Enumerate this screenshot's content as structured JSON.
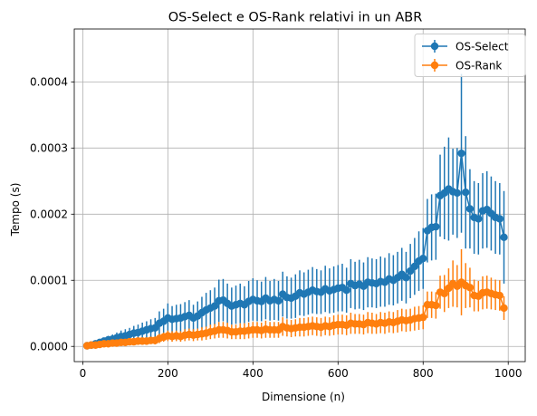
{
  "chart_data": {
    "type": "line",
    "title": "OS-Select e OS-Rank relativi in un ABR",
    "xlabel": "Dimensione (n)",
    "ylabel": "Tempo (s)",
    "xlim": [
      -20,
      1040
    ],
    "ylim": [
      -2.3e-05,
      0.00048
    ],
    "xticks": [
      0,
      200,
      400,
      600,
      800,
      1000
    ],
    "xtick_labels": [
      "0",
      "200",
      "400",
      "600",
      "800",
      "1000"
    ],
    "yticks": [
      0,
      0.0001,
      0.0002,
      0.0003,
      0.0004
    ],
    "ytick_labels": [
      "0.0000",
      "0.0001",
      "0.0002",
      "0.0003",
      "0.0004"
    ],
    "grid": true,
    "legend_position": "top-right",
    "error_bars": true,
    "x": [
      10,
      20,
      30,
      40,
      50,
      60,
      70,
      80,
      90,
      100,
      110,
      120,
      130,
      140,
      150,
      160,
      170,
      180,
      190,
      200,
      210,
      220,
      230,
      240,
      250,
      260,
      270,
      280,
      290,
      300,
      310,
      320,
      330,
      340,
      350,
      360,
      370,
      380,
      390,
      400,
      410,
      420,
      430,
      440,
      450,
      460,
      470,
      480,
      490,
      500,
      510,
      520,
      530,
      540,
      550,
      560,
      570,
      580,
      590,
      600,
      610,
      620,
      630,
      640,
      650,
      660,
      670,
      680,
      690,
      700,
      710,
      720,
      730,
      740,
      750,
      760,
      770,
      780,
      790,
      800,
      810,
      820,
      830,
      840,
      850,
      860,
      870,
      880,
      890,
      900,
      910,
      920,
      930,
      940,
      950,
      960,
      970,
      980,
      990
    ],
    "series": [
      {
        "name": "OS-Select",
        "color": "#1f77b4",
        "values": [
          1e-06,
          2e-06,
          4e-06,
          6e-06,
          8e-06,
          1e-05,
          1.1e-05,
          1.3e-05,
          1.5e-05,
          1.6e-05,
          1.8e-05,
          2e-05,
          2.1e-05,
          2.3e-05,
          2.5e-05,
          2.7e-05,
          2.8e-05,
          3.5e-05,
          3.8e-05,
          4.3e-05,
          4.1e-05,
          4.2e-05,
          4.3e-05,
          4.5e-05,
          4.7e-05,
          4.3e-05,
          4.6e-05,
          5.1e-05,
          5.5e-05,
          5.8e-05,
          6.1e-05,
          6.9e-05,
          7e-05,
          6.5e-05,
          6.1e-05,
          6.3e-05,
          6.5e-05,
          6.3e-05,
          6.8e-05,
          7.1e-05,
          6.9e-05,
          6.8e-05,
          7.3e-05,
          6.9e-05,
          7.1e-05,
          6.9e-05,
          7.9e-05,
          7.4e-05,
          7.3e-05,
          7.6e-05,
          8.1e-05,
          7.9e-05,
          8.2e-05,
          8.5e-05,
          8.3e-05,
          8.2e-05,
          8.7e-05,
          8.4e-05,
          8.6e-05,
          8.8e-05,
          8.9e-05,
          8.5e-05,
          9.5e-05,
          9.2e-05,
          9.4e-05,
          9.1e-05,
          9.7e-05,
          9.6e-05,
          9.5e-05,
          9.8e-05,
          9.7e-05,
          0.000102,
          0.0001,
          0.000104,
          0.000109,
          0.000104,
          0.000114,
          0.000121,
          0.000129,
          0.000133,
          0.000175,
          0.00018,
          0.000181,
          0.000228,
          0.000232,
          0.000238,
          0.000234,
          0.000232,
          0.000292,
          0.000233,
          0.000208,
          0.000195,
          0.000193,
          0.000205,
          0.000207,
          0.000201,
          0.000195,
          0.000193,
          0.000165
        ],
        "errors": [
          1e-06,
          2e-06,
          3e-06,
          4e-06,
          5e-06,
          6e-06,
          7e-06,
          8e-06,
          9e-06,
          1e-05,
          1e-05,
          1.1e-05,
          1.2e-05,
          1.3e-05,
          1.3e-05,
          1.4e-05,
          1.5e-05,
          1.8e-05,
          1.9e-05,
          2.2e-05,
          2e-05,
          2.1e-05,
          2.1e-05,
          2.2e-05,
          2.3e-05,
          2e-05,
          2.2e-05,
          2.4e-05,
          2.6e-05,
          2.7e-05,
          2.8e-05,
          3.2e-05,
          3.2e-05,
          3e-05,
          2.8e-05,
          2.9e-05,
          3e-05,
          2.8e-05,
          3.1e-05,
          3.2e-05,
          3.1e-05,
          3e-05,
          3.2e-05,
          3e-05,
          3.1e-05,
          3e-05,
          3.4e-05,
          3.2e-05,
          3.1e-05,
          3.3e-05,
          3.4e-05,
          3.3e-05,
          3.4e-05,
          3.5e-05,
          3.4e-05,
          3.3e-05,
          3.5e-05,
          3.4e-05,
          3.5e-05,
          3.5e-05,
          3.6e-05,
          3.4e-05,
          3.7e-05,
          3.6e-05,
          3.7e-05,
          3.6e-05,
          3.8e-05,
          3.7e-05,
          3.7e-05,
          3.8e-05,
          3.7e-05,
          3.9e-05,
          3.8e-05,
          3.9e-05,
          4e-05,
          3.9e-05,
          4.1e-05,
          4.3e-05,
          4.5e-05,
          4.6e-05,
          4.8e-05,
          5e-05,
          5e-05,
          6.2e-05,
          7e-05,
          7.8e-05,
          6.5e-05,
          6.8e-05,
          0.00012,
          8.5e-05,
          6e-05,
          5.5e-05,
          5.4e-05,
          5.7e-05,
          5.8e-05,
          5.6e-05,
          5.5e-05,
          5.4e-05,
          7e-05
        ]
      },
      {
        "name": "OS-Rank",
        "color": "#ff7f0e",
        "values": [
          1e-06,
          2e-06,
          2e-06,
          3e-06,
          4e-06,
          4e-06,
          5e-06,
          5e-06,
          6e-06,
          6e-06,
          7e-06,
          7e-06,
          8e-06,
          8e-06,
          8e-06,
          9e-06,
          9e-06,
          1.2e-05,
          1.4e-05,
          1.6e-05,
          1.5e-05,
          1.6e-05,
          1.5e-05,
          1.7e-05,
          1.8e-05,
          1.7e-05,
          1.8e-05,
          1.9e-05,
          2e-05,
          2.2e-05,
          2.3e-05,
          2.5e-05,
          2.5e-05,
          2.4e-05,
          2.2e-05,
          2.2e-05,
          2.3e-05,
          2.3e-05,
          2.4e-05,
          2.5e-05,
          2.5e-05,
          2.4e-05,
          2.6e-05,
          2.5e-05,
          2.5e-05,
          2.5e-05,
          3e-05,
          2.8e-05,
          2.7e-05,
          2.8e-05,
          2.9e-05,
          2.9e-05,
          3e-05,
          3.1e-05,
          3e-05,
          2.9e-05,
          3.1e-05,
          3e-05,
          3.2e-05,
          3.3e-05,
          3.3e-05,
          3.2e-05,
          3.5e-05,
          3.4e-05,
          3.4e-05,
          3.3e-05,
          3.6e-05,
          3.5e-05,
          3.4e-05,
          3.6e-05,
          3.5e-05,
          3.7e-05,
          3.6e-05,
          3.8e-05,
          4e-05,
          3.9e-05,
          4e-05,
          4.2e-05,
          4.3e-05,
          4.4e-05,
          6.3e-05,
          6.3e-05,
          6.2e-05,
          8.2e-05,
          8e-05,
          8.8e-05,
          9.5e-05,
          9.1e-05,
          9.7e-05,
          9.2e-05,
          8.9e-05,
          7.7e-05,
          7.6e-05,
          8.1e-05,
          8.2e-05,
          8e-05,
          7.8e-05,
          7.7e-05,
          5.8e-05
        ],
        "errors": [
          1e-06,
          1e-06,
          2e-06,
          2e-06,
          2e-06,
          3e-06,
          3e-06,
          3e-06,
          4e-06,
          4e-06,
          4e-06,
          4e-06,
          5e-06,
          5e-06,
          5e-06,
          5e-06,
          6e-06,
          7e-06,
          7e-06,
          8e-06,
          8e-06,
          8e-06,
          8e-06,
          9e-06,
          9e-06,
          9e-06,
          9e-06,
          1e-05,
          1e-05,
          1.1e-05,
          1.1e-05,
          1.2e-05,
          1.2e-05,
          1.2e-05,
          1.1e-05,
          1.1e-05,
          1.2e-05,
          1.2e-05,
          1.2e-05,
          1.2e-05,
          1.2e-05,
          1.2e-05,
          1.3e-05,
          1.2e-05,
          1.2e-05,
          1.2e-05,
          1.4e-05,
          1.3e-05,
          1.3e-05,
          1.3e-05,
          1.4e-05,
          1.4e-05,
          1.4e-05,
          1.4e-05,
          1.4e-05,
          1.4e-05,
          1.4e-05,
          1.4e-05,
          1.5e-05,
          1.5e-05,
          1.5e-05,
          1.5e-05,
          1.6e-05,
          1.5e-05,
          1.5e-05,
          1.5e-05,
          1.6e-05,
          1.6e-05,
          1.5e-05,
          1.6e-05,
          1.6e-05,
          1.6e-05,
          1.6e-05,
          1.7e-05,
          1.7e-05,
          1.7e-05,
          1.7e-05,
          1.8e-05,
          1.8e-05,
          1.8e-05,
          2e-05,
          2e-05,
          2e-05,
          2.5e-05,
          2.8e-05,
          3e-05,
          3.5e-05,
          3.2e-05,
          5e-05,
          3.4e-05,
          3e-05,
          2.4e-05,
          2.3e-05,
          2.5e-05,
          2.5e-05,
          2.4e-05,
          2.3e-05,
          2.3e-05,
          1.8e-05
        ]
      }
    ]
  }
}
